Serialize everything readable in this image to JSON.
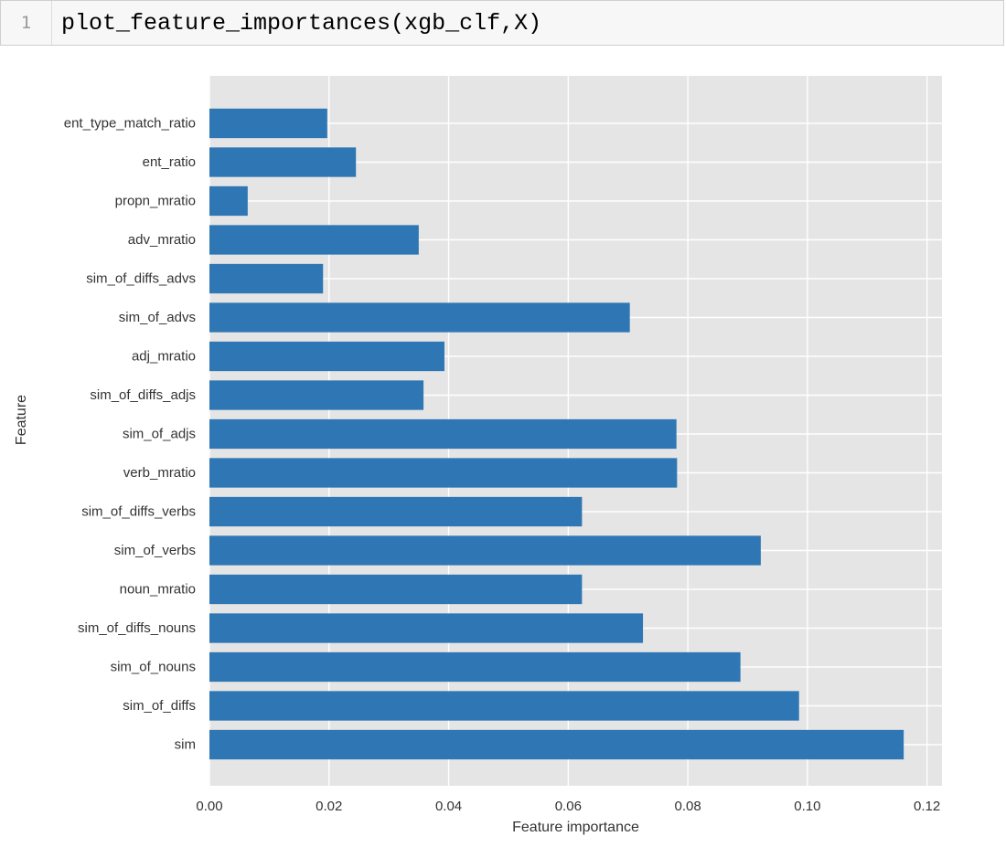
{
  "cell": {
    "line_number": "1",
    "code": "plot_feature_importances(xgb_clf,X)"
  },
  "colors": {
    "bar": "#2f77b4",
    "plot_bg": "#e5e5e5",
    "grid": "#ffffff",
    "text": "#333333"
  },
  "chart_data": {
    "type": "bar",
    "orientation": "horizontal",
    "title": "",
    "xlabel": "Feature importance",
    "ylabel": "Feature",
    "xlim": [
      0,
      0.1225
    ],
    "xticks": [
      0.0,
      0.02,
      0.04,
      0.06,
      0.08,
      0.1,
      0.12
    ],
    "xtick_labels": [
      "0.00",
      "0.02",
      "0.04",
      "0.06",
      "0.08",
      "0.10",
      "0.12"
    ],
    "grid": true,
    "categories": [
      "sim",
      "sim_of_diffs",
      "sim_of_nouns",
      "sim_of_diffs_nouns",
      "noun_mratio",
      "sim_of_verbs",
      "sim_of_diffs_verbs",
      "verb_mratio",
      "sim_of_adjs",
      "sim_of_diffs_adjs",
      "adj_mratio",
      "sim_of_advs",
      "sim_of_diffs_advs",
      "adv_mratio",
      "propn_mratio",
      "ent_ratio",
      "ent_type_match_ratio"
    ],
    "values": [
      0.1161,
      0.0986,
      0.0888,
      0.0725,
      0.0623,
      0.0922,
      0.0623,
      0.0782,
      0.0781,
      0.0358,
      0.0393,
      0.0703,
      0.019,
      0.035,
      0.0064,
      0.0245,
      0.0197
    ]
  }
}
